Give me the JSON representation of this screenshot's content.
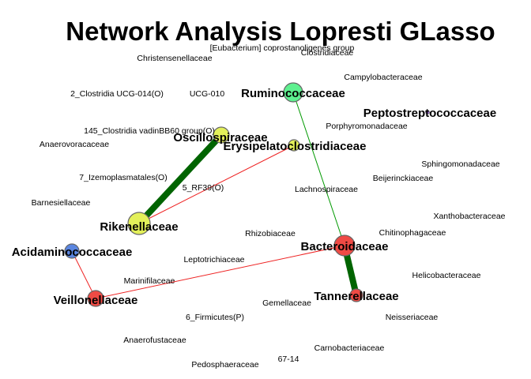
{
  "title": "Network Analysis Lopresti GLasso",
  "node_colors": {
    "green": "#5ef08f",
    "yellow": "#e3f05a",
    "red": "#ef4a44",
    "blue": "#5b86e0",
    "purple": "#9b6bd2"
  },
  "edge_colors": {
    "positive": "#009900",
    "strong_positive": "#006400",
    "negative": "#ee2222"
  },
  "small_labels": [
    "[Eubacterium] coprostanoligenes group",
    "Clostridiaceae",
    "Christensenellaceae",
    "Campylobacteraceae",
    "2_Clostridia UCG-014(O)",
    "UCG-010",
    "145_Clostridia vadinBB60 group(O)",
    "Porphyromonadaceae",
    "Anaerovoracaceae",
    "Sphingomonadaceae",
    "7_Izemoplasmatales(O)",
    "Beijerinckiaceae",
    "5_RF39(O)",
    "Lachnospiraceae",
    "Barnesiellaceae",
    "Xanthobacteraceae",
    "Rhizobiaceae",
    "Chitinophagaceae",
    "Leptotrichiaceae",
    "Helicobacteraceae",
    "Marinifilaceae",
    "Gemellaceae",
    "6_Firmicutes(P)",
    "Neisseriaceae",
    "Anaerofustaceae",
    "Carnobacteriaceae",
    "67-14",
    "Pedosphaeraceae"
  ],
  "nodes": [
    {
      "label": "Ruminococcaceae",
      "color": "green"
    },
    {
      "label": "Peptostreptococcaceae",
      "color": "purple"
    },
    {
      "label": "Oscillospiraceae",
      "color": "yellow"
    },
    {
      "label": "Erysipelatoclostridiaceae",
      "color": "yellow"
    },
    {
      "label": "Rikenellaceae",
      "color": "yellow"
    },
    {
      "label": "Acidaminococcaceae",
      "color": "blue"
    },
    {
      "label": "Bacteroidaceae",
      "color": "red"
    },
    {
      "label": "Veillonellaceae",
      "color": "red"
    },
    {
      "label": "Tannerellaceae",
      "color": "red"
    }
  ],
  "edges": [
    {
      "source": "Ruminococcaceae",
      "target": "Bacteroidaceae",
      "sign": "positive",
      "strength": "weak"
    },
    {
      "source": "Oscillospiraceae",
      "target": "Rikenellaceae",
      "sign": "positive",
      "strength": "strong"
    },
    {
      "source": "Bacteroidaceae",
      "target": "Tannerellaceae",
      "sign": "positive",
      "strength": "strong"
    },
    {
      "source": "Erysipelatoclostridiaceae",
      "target": "Rikenellaceae",
      "sign": "negative",
      "strength": "weak"
    },
    {
      "source": "Bacteroidaceae",
      "target": "Veillonellaceae",
      "sign": "negative",
      "strength": "weak"
    },
    {
      "source": "Acidaminococcaceae",
      "target": "Veillonellaceae",
      "sign": "negative",
      "strength": "weak"
    }
  ]
}
